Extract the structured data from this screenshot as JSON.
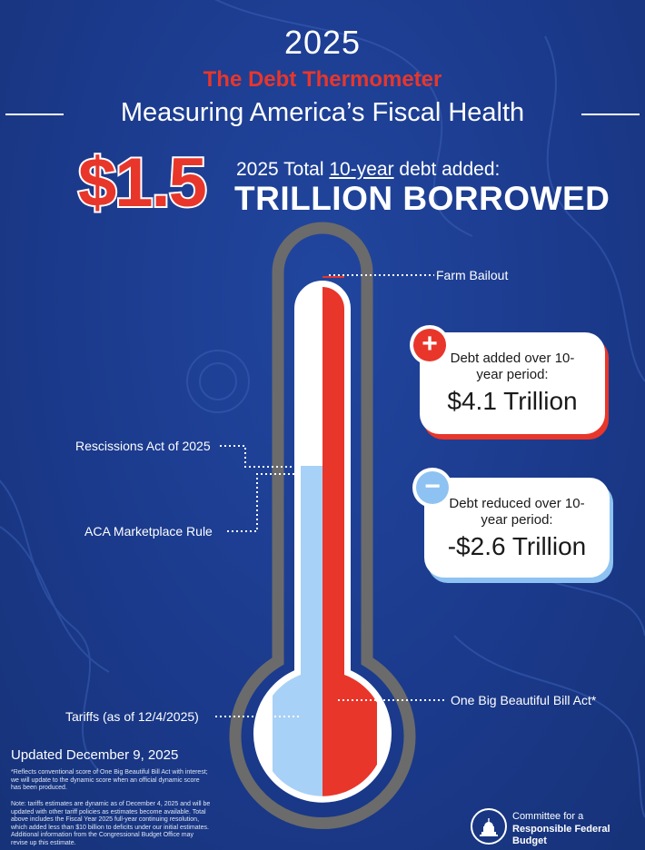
{
  "header": {
    "year": "2025",
    "title": "The Debt Thermometer",
    "subtitle": "Measuring America’s Fiscal Health"
  },
  "headline": {
    "amount": "$1.5",
    "sub_prefix": "2025 Total ",
    "sub_underline": "10-year",
    "sub_suffix": " debt added:",
    "main": "TRILLION BORROWED"
  },
  "thermometer": {
    "labels": {
      "farm_bailout": "Farm Bailout",
      "rescissions": "Rescissions Act of 2025",
      "aca": "ACA Marketplace Rule",
      "tariffs": "Tariffs (as of 12/4/2025)",
      "obbba": "One Big Beautiful Bill Act*"
    }
  },
  "cards": {
    "added": {
      "badge": "+",
      "title": "Debt added over 10-year period:",
      "value": "$4.1 Trillion"
    },
    "reduced": {
      "badge": "−",
      "title": "Debt reduced over 10-year period:",
      "value": "-$2.6 Trillion"
    }
  },
  "footer": {
    "updated": "Updated December 9, 2025",
    "note1": "*Reflects conventional score of One Big Beautiful Bill Act with interest; we will update to the dynamic score when an official dynamic score has been produced.",
    "note2": "Note: tariffs estimates are dynamic as of December 4, 2025 and will be updated with other tariff policies as estimates become available. Total above includes the Fiscal Year 2025 full-year continuing resolution, which added less than $10 billion to deficits under our initial estimates. Additional information from the Congressional Budget Office may revise up this estimate.",
    "logo_line1": "Committee for a",
    "logo_line2": "Responsible Federal Budget"
  },
  "colors": {
    "background": "#1b3a8c",
    "red": "#e8362b",
    "light_blue": "#a8d1f7",
    "outline_gray": "#6b6b6b"
  }
}
